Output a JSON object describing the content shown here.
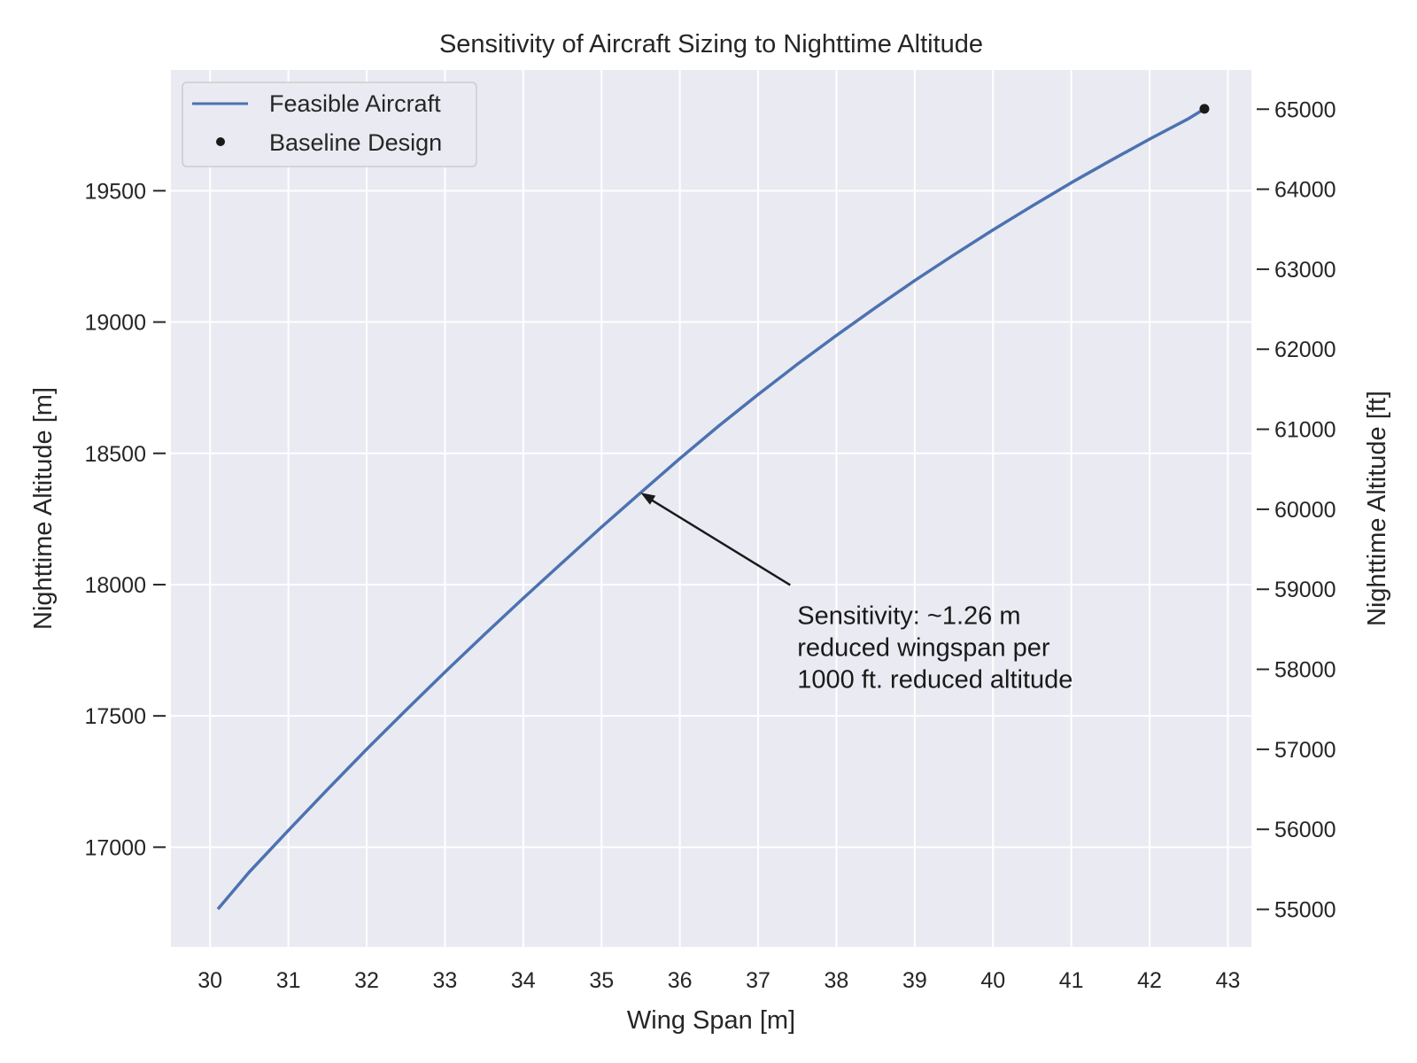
{
  "chart_data": {
    "type": "line",
    "title": "Sensitivity of Aircraft Sizing to Nighttime Altitude",
    "xlabel": "Wing Span [m]",
    "ylabel": "Nighttime Altitude [m]",
    "ylabel_right": "Nighttime Altitude [ft]",
    "xlim": [
      29.5,
      43.3
    ],
    "ylim": [
      16620,
      19960
    ],
    "ylim_right_ft": [
      54530,
      65490
    ],
    "x_ticks": [
      30,
      31,
      32,
      33,
      34,
      35,
      36,
      37,
      38,
      39,
      40,
      41,
      42,
      43
    ],
    "y_ticks": [
      17000,
      17500,
      18000,
      18500,
      19000,
      19500
    ],
    "y_ticks_right": [
      55000,
      56000,
      57000,
      58000,
      59000,
      60000,
      61000,
      62000,
      63000,
      64000,
      65000
    ],
    "grid": true,
    "legend_position": "upper-left",
    "series": [
      {
        "name": "Feasible Aircraft",
        "color": "#4c72b0",
        "style": "line",
        "x": [
          30.1,
          30.5,
          31.0,
          31.5,
          32.0,
          32.5,
          33.0,
          33.5,
          34.0,
          34.5,
          35.0,
          35.5,
          36.0,
          36.5,
          37.0,
          37.5,
          38.0,
          38.5,
          39.0,
          39.5,
          40.0,
          40.5,
          41.0,
          41.5,
          42.0,
          42.5,
          42.7
        ],
        "y": [
          16764,
          16905,
          17064,
          17220,
          17373,
          17521,
          17667,
          17809,
          17948,
          18084,
          18219,
          18350,
          18480,
          18605,
          18724,
          18839,
          18949,
          19055,
          19158,
          19256,
          19351,
          19442,
          19531,
          19615,
          19697,
          19775,
          19812
        ]
      },
      {
        "name": "Baseline Design",
        "color": "#1a1a1a",
        "style": "marker",
        "x": [
          42.7
        ],
        "y": [
          19812
        ]
      }
    ],
    "annotation": {
      "lines": [
        "Sensitivity: ~1.26 m",
        "reduced wingspan per",
        "1000 ft. reduced altitude"
      ],
      "point": [
        35.5,
        18350
      ],
      "text_at": [
        37.5,
        17850
      ]
    },
    "colors": {
      "plot_background": "#eaeaf2",
      "grid": "#ffffff",
      "line": "#4c72b0",
      "baseline_marker": "#1a1a1a"
    }
  }
}
